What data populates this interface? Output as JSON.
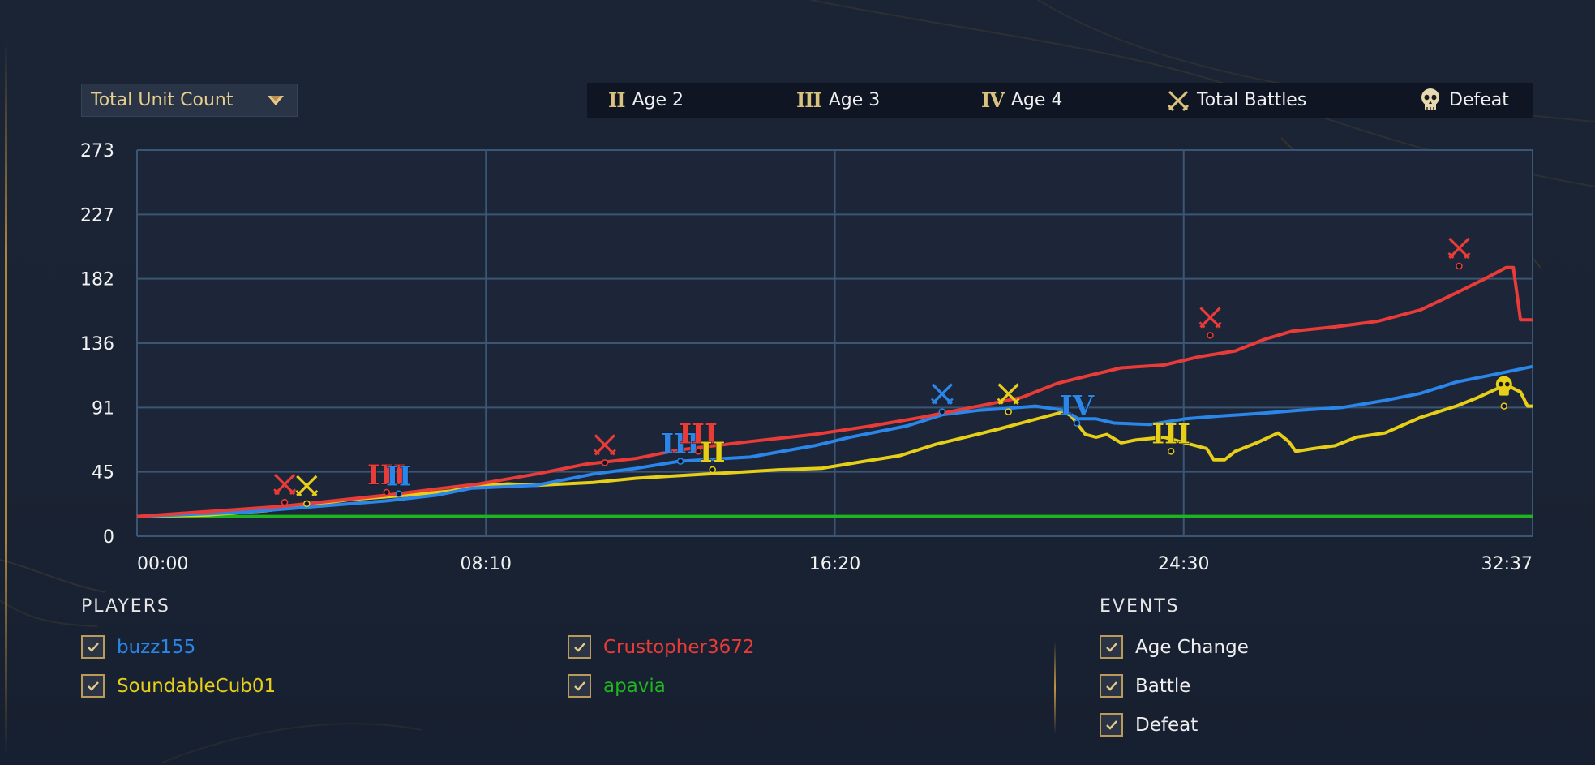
{
  "dropdown": {
    "selected": "Total Unit Count"
  },
  "legend": [
    {
      "symbol": "II",
      "label": "Age 2"
    },
    {
      "symbol": "III",
      "label": "Age 3"
    },
    {
      "symbol": "IV",
      "label": "Age 4"
    },
    {
      "symbol": "crossed-swords-icon",
      "label": "Total Battles"
    },
    {
      "symbol": "skull-icon",
      "label": "Defeat"
    }
  ],
  "players": {
    "title": "PLAYERS",
    "items": [
      {
        "name": "buzz155",
        "color": "#2a86e8",
        "checked": true
      },
      {
        "name": "Crustopher3672",
        "color": "#e93b37",
        "checked": true
      },
      {
        "name": "SoundableCub01",
        "color": "#e7cf18",
        "checked": true
      },
      {
        "name": "apavia",
        "color": "#1fb51f",
        "checked": true
      }
    ]
  },
  "events": {
    "title": "EVENTS",
    "items": [
      {
        "name": "Age Change",
        "checked": true
      },
      {
        "name": "Battle",
        "checked": true
      },
      {
        "name": "Defeat",
        "checked": true
      }
    ]
  },
  "chart_data": {
    "type": "line",
    "title": "",
    "xlabel": "",
    "ylabel": "",
    "y_ticks": [
      "273",
      "227",
      "182",
      "136",
      "91",
      "45",
      "0"
    ],
    "x_ticks": [
      "00:00",
      "08:10",
      "16:20",
      "24:30",
      "32:37"
    ],
    "xlim_seconds": [
      0,
      1957
    ],
    "ylim": [
      0,
      273
    ],
    "grid": true,
    "series": [
      {
        "name": "apavia",
        "color": "#1fb51f",
        "points": [
          [
            0,
            14
          ],
          [
            1957,
            14
          ]
        ]
      },
      {
        "name": "SoundableCub01",
        "color": "#e7cf18",
        "points": [
          [
            0,
            14
          ],
          [
            100,
            15
          ],
          [
            180,
            18
          ],
          [
            240,
            22
          ],
          [
            300,
            26
          ],
          [
            380,
            29
          ],
          [
            440,
            32
          ],
          [
            470,
            35
          ],
          [
            520,
            37
          ],
          [
            560,
            36
          ],
          [
            640,
            38
          ],
          [
            700,
            41
          ],
          [
            800,
            44
          ],
          [
            900,
            47
          ],
          [
            960,
            48
          ],
          [
            1020,
            53
          ],
          [
            1070,
            57
          ],
          [
            1120,
            65
          ],
          [
            1170,
            71
          ],
          [
            1210,
            76
          ],
          [
            1240,
            80
          ],
          [
            1270,
            84
          ],
          [
            1300,
            88
          ],
          [
            1310,
            85
          ],
          [
            1330,
            72
          ],
          [
            1345,
            70
          ],
          [
            1360,
            72
          ],
          [
            1380,
            66
          ],
          [
            1400,
            68
          ],
          [
            1440,
            70
          ],
          [
            1470,
            66
          ],
          [
            1500,
            62
          ],
          [
            1510,
            54
          ],
          [
            1525,
            54
          ],
          [
            1540,
            60
          ],
          [
            1570,
            66
          ],
          [
            1600,
            73
          ],
          [
            1615,
            67
          ],
          [
            1625,
            60
          ],
          [
            1650,
            62
          ],
          [
            1680,
            64
          ],
          [
            1710,
            70
          ],
          [
            1750,
            73
          ],
          [
            1800,
            84
          ],
          [
            1850,
            92
          ],
          [
            1880,
            98
          ],
          [
            1910,
            105
          ],
          [
            1920,
            107
          ],
          [
            1940,
            102
          ],
          [
            1950,
            92
          ],
          [
            1957,
            92
          ]
        ]
      },
      {
        "name": "buzz155",
        "color": "#2a86e8",
        "points": [
          [
            0,
            14
          ],
          [
            150,
            17
          ],
          [
            350,
            25
          ],
          [
            420,
            29
          ],
          [
            470,
            34
          ],
          [
            560,
            36
          ],
          [
            640,
            44
          ],
          [
            700,
            48
          ],
          [
            760,
            53
          ],
          [
            860,
            56
          ],
          [
            950,
            64
          ],
          [
            1000,
            70
          ],
          [
            1080,
            78
          ],
          [
            1130,
            86
          ],
          [
            1180,
            89
          ],
          [
            1210,
            90
          ],
          [
            1260,
            92
          ],
          [
            1300,
            89
          ],
          [
            1320,
            83
          ],
          [
            1345,
            83
          ],
          [
            1370,
            80
          ],
          [
            1420,
            79
          ],
          [
            1470,
            83
          ],
          [
            1520,
            85
          ],
          [
            1580,
            87
          ],
          [
            1630,
            89
          ],
          [
            1690,
            91
          ],
          [
            1750,
            96
          ],
          [
            1800,
            101
          ],
          [
            1850,
            109
          ],
          [
            1900,
            114
          ],
          [
            1957,
            120
          ]
        ]
      },
      {
        "name": "Crustopher3672",
        "color": "#e93b37",
        "points": [
          [
            0,
            14
          ],
          [
            200,
            21
          ],
          [
            350,
            29
          ],
          [
            430,
            34
          ],
          [
            480,
            37
          ],
          [
            560,
            44
          ],
          [
            630,
            51
          ],
          [
            700,
            55
          ],
          [
            760,
            61
          ],
          [
            860,
            67
          ],
          [
            950,
            72
          ],
          [
            1030,
            78
          ],
          [
            1100,
            84
          ],
          [
            1180,
            92
          ],
          [
            1240,
            98
          ],
          [
            1290,
            108
          ],
          [
            1330,
            113
          ],
          [
            1380,
            119
          ],
          [
            1440,
            121
          ],
          [
            1490,
            127
          ],
          [
            1540,
            131
          ],
          [
            1580,
            139
          ],
          [
            1620,
            145
          ],
          [
            1680,
            148
          ],
          [
            1740,
            152
          ],
          [
            1800,
            160
          ],
          [
            1850,
            172
          ],
          [
            1890,
            182
          ],
          [
            1920,
            190
          ],
          [
            1930,
            190
          ],
          [
            1940,
            153
          ],
          [
            1957,
            153
          ]
        ]
      }
    ],
    "events": [
      {
        "type": "battle",
        "player": "Crustopher3672",
        "t": 207,
        "v": 24
      },
      {
        "type": "battle",
        "player": "SoundableCub01",
        "t": 238,
        "v": 23
      },
      {
        "type": "age",
        "label": "III",
        "player": "Crustopher3672",
        "t": 350,
        "v": 31
      },
      {
        "type": "age",
        "label": "II",
        "player": "buzz155",
        "t": 367,
        "v": 30
      },
      {
        "type": "battle",
        "player": "Crustopher3672",
        "t": 656,
        "v": 52
      },
      {
        "type": "age",
        "label": "III",
        "player": "buzz155",
        "t": 762,
        "v": 53
      },
      {
        "type": "age",
        "label": "III",
        "player": "Crustopher3672",
        "t": 787,
        "v": 60
      },
      {
        "type": "age",
        "label": "II",
        "player": "SoundableCub01",
        "t": 807,
        "v": 47
      },
      {
        "type": "battle",
        "player": "buzz155",
        "t": 1129,
        "v": 88
      },
      {
        "type": "battle",
        "player": "SoundableCub01",
        "t": 1222,
        "v": 88
      },
      {
        "type": "age",
        "label": "IV",
        "player": "buzz155",
        "t": 1318,
        "v": 80
      },
      {
        "type": "age",
        "label": "III",
        "player": "SoundableCub01",
        "t": 1450,
        "v": 60
      },
      {
        "type": "battle",
        "player": "Crustopher3672",
        "t": 1505,
        "v": 142
      },
      {
        "type": "battle",
        "player": "Crustopher3672",
        "t": 1854,
        "v": 191
      },
      {
        "type": "defeat",
        "player": "SoundableCub01",
        "t": 1917,
        "v": 92
      }
    ]
  }
}
